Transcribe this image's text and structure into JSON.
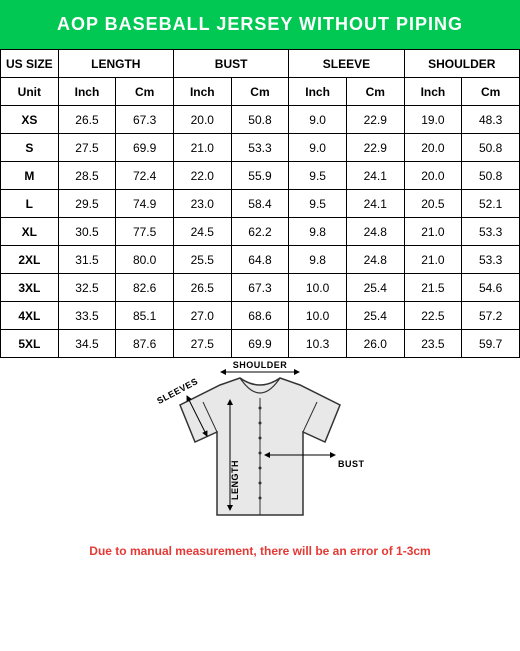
{
  "header": {
    "title": "AOP BASEBALL JERSEY WITHOUT PIPING",
    "bg": "#00c853",
    "fg": "#ffffff"
  },
  "table": {
    "type": "table",
    "columns": [
      {
        "label": "US SIZE",
        "span": 1
      },
      {
        "label": "LENGTH",
        "span": 2
      },
      {
        "label": "BUST",
        "span": 2
      },
      {
        "label": "SLEEVE",
        "span": 2
      },
      {
        "label": "SHOULDER",
        "span": 2
      }
    ],
    "unit_row": {
      "head": "Unit",
      "values": [
        "Inch",
        "Cm",
        "Inch",
        "Cm",
        "Inch",
        "Cm",
        "Inch",
        "Cm"
      ]
    },
    "rows": [
      {
        "size": "XS",
        "cells": [
          "26.5",
          "67.3",
          "20.0",
          "50.8",
          "9.0",
          "22.9",
          "19.0",
          "48.3"
        ]
      },
      {
        "size": "S",
        "cells": [
          "27.5",
          "69.9",
          "21.0",
          "53.3",
          "9.0",
          "22.9",
          "20.0",
          "50.8"
        ]
      },
      {
        "size": "M",
        "cells": [
          "28.5",
          "72.4",
          "22.0",
          "55.9",
          "9.5",
          "24.1",
          "20.0",
          "50.8"
        ]
      },
      {
        "size": "L",
        "cells": [
          "29.5",
          "74.9",
          "23.0",
          "58.4",
          "9.5",
          "24.1",
          "20.5",
          "52.1"
        ]
      },
      {
        "size": "XL",
        "cells": [
          "30.5",
          "77.5",
          "24.5",
          "62.2",
          "9.8",
          "24.8",
          "21.0",
          "53.3"
        ]
      },
      {
        "size": "2XL",
        "cells": [
          "31.5",
          "80.0",
          "25.5",
          "64.8",
          "9.8",
          "24.8",
          "21.0",
          "53.3"
        ]
      },
      {
        "size": "3XL",
        "cells": [
          "32.5",
          "82.6",
          "26.5",
          "67.3",
          "10.0",
          "25.4",
          "21.5",
          "54.6"
        ]
      },
      {
        "size": "4XL",
        "cells": [
          "33.5",
          "85.1",
          "27.0",
          "68.6",
          "10.0",
          "25.4",
          "22.5",
          "57.2"
        ]
      },
      {
        "size": "5XL",
        "cells": [
          "34.5",
          "87.6",
          "27.5",
          "69.9",
          "10.3",
          "26.0",
          "23.5",
          "59.7"
        ]
      }
    ],
    "border_color": "#000000",
    "font_size": 12
  },
  "diagram": {
    "labels": {
      "shoulder": "SHOULDER",
      "sleeves": "SLEEVES",
      "length": "LENGTH",
      "bust": "BUST"
    },
    "shirt_fill": "#e8e8e8",
    "shirt_stroke": "#333333",
    "arrow_color": "#000000"
  },
  "disclaimer": {
    "text": "Due to manual measurement, there will be an error of 1-3cm",
    "color": "#e53935"
  }
}
